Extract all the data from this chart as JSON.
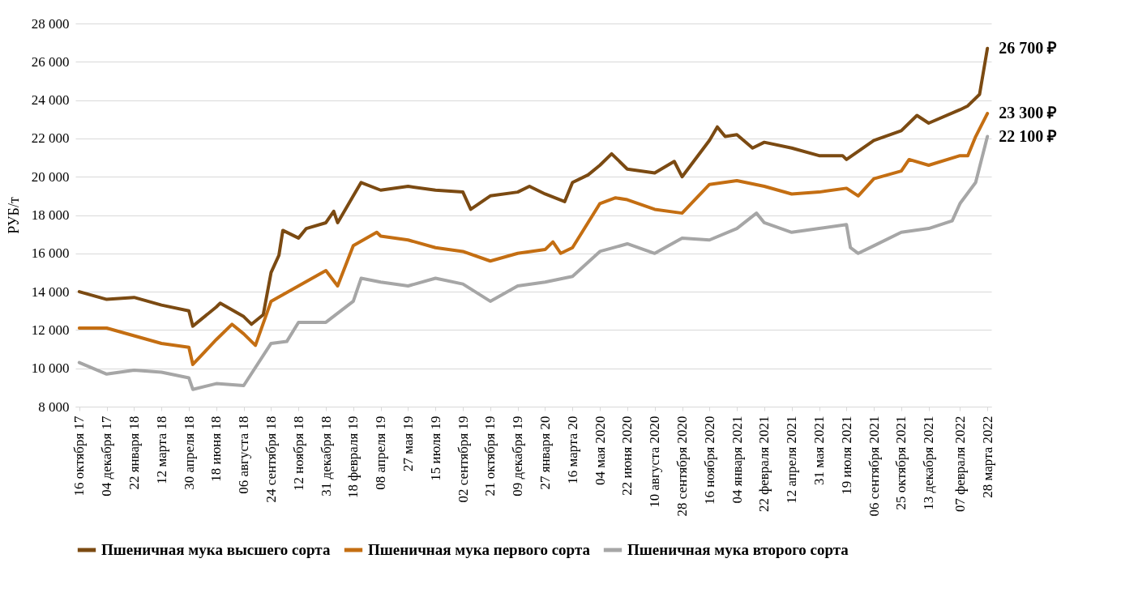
{
  "chart_data": {
    "type": "line",
    "ylabel": "РУБ/т",
    "xlim": [
      "2017-10-09",
      "2022-04-04"
    ],
    "xticks": [
      {
        "value": "2017-10-16",
        "label": "16 октября 17"
      },
      {
        "value": "2017-12-04",
        "label": "04 декабря 17"
      },
      {
        "value": "2018-01-22",
        "label": "22 января 18"
      },
      {
        "value": "2018-03-12",
        "label": "12 марта 18"
      },
      {
        "value": "2018-04-30",
        "label": "30 апреля 18"
      },
      {
        "value": "2018-06-18",
        "label": "18 июня 18"
      },
      {
        "value": "2018-08-06",
        "label": "06 августа 18"
      },
      {
        "value": "2018-09-24",
        "label": "24 сентября 18"
      },
      {
        "value": "2018-11-12",
        "label": "12 ноября 18"
      },
      {
        "value": "2018-12-31",
        "label": "31 декабря 18"
      },
      {
        "value": "2019-02-18",
        "label": "18 февраля 19"
      },
      {
        "value": "2019-04-08",
        "label": "08 апреля 19"
      },
      {
        "value": "2019-05-27",
        "label": "27 мая 19"
      },
      {
        "value": "2019-07-15",
        "label": "15 июля 19"
      },
      {
        "value": "2019-09-02",
        "label": "02 сентября 19"
      },
      {
        "value": "2019-10-21",
        "label": "21 октября 19"
      },
      {
        "value": "2019-12-09",
        "label": "09 декабря 19"
      },
      {
        "value": "2020-01-27",
        "label": "27 января 20"
      },
      {
        "value": "2020-03-16",
        "label": "16 марта 20"
      },
      {
        "value": "2020-05-04",
        "label": "04 мая 2020"
      },
      {
        "value": "2020-06-22",
        "label": "22 июня 2020"
      },
      {
        "value": "2020-08-10",
        "label": "10 августа 2020"
      },
      {
        "value": "2020-09-28",
        "label": "28 сентября 2020"
      },
      {
        "value": "2020-11-16",
        "label": "16 ноября 2020"
      },
      {
        "value": "2021-01-04",
        "label": "04 января 2021"
      },
      {
        "value": "2021-02-22",
        "label": "22 февраля 2021"
      },
      {
        "value": "2021-04-12",
        "label": "12 апреля 2021"
      },
      {
        "value": "2021-05-31",
        "label": "31 мая 2021"
      },
      {
        "value": "2021-07-19",
        "label": "19 июля 2021"
      },
      {
        "value": "2021-09-06",
        "label": "06 сентября 2021"
      },
      {
        "value": "2021-10-25",
        "label": "25 октября 2021"
      },
      {
        "value": "2021-12-13",
        "label": "13 декабря 2021"
      },
      {
        "value": "2022-02-07",
        "label": "07 февраля 2022"
      },
      {
        "value": "2022-03-28",
        "label": "28 марта 2022"
      }
    ],
    "ylim": [
      8000,
      28000
    ],
    "yticks": [
      {
        "value": 8000,
        "label": "8 000"
      },
      {
        "value": 10000,
        "label": "10 000"
      },
      {
        "value": 12000,
        "label": "12 000"
      },
      {
        "value": 14000,
        "label": "14 000"
      },
      {
        "value": 16000,
        "label": "16 000"
      },
      {
        "value": 18000,
        "label": "18 000"
      },
      {
        "value": 20000,
        "label": "20 000"
      },
      {
        "value": 22000,
        "label": "22 000"
      },
      {
        "value": 24000,
        "label": "24 000"
      },
      {
        "value": 26000,
        "label": "26 000"
      },
      {
        "value": 28000,
        "label": "28 000"
      }
    ],
    "grid": "y",
    "legend": "bottom",
    "annotations": [
      {
        "text": "26 700 ₽",
        "x": "2022-03-28",
        "y": 26700
      },
      {
        "text": "23 300 ₽",
        "x": "2022-03-28",
        "y": 23300
      },
      {
        "text": "22 100 ₽",
        "x": "2022-03-28",
        "y": 22100
      }
    ],
    "series": [
      {
        "name": "Пшеничная мука высшего сорта",
        "color": "#7b4a12",
        "x": [
          "2017-10-16",
          "2017-12-04",
          "2018-01-22",
          "2018-03-12",
          "2018-04-30",
          "2018-05-07",
          "2018-06-18",
          "2018-06-25",
          "2018-08-06",
          "2018-08-20",
          "2018-09-10",
          "2018-09-24",
          "2018-10-08",
          "2018-10-15",
          "2018-11-12",
          "2018-11-26",
          "2018-12-31",
          "2019-01-14",
          "2019-01-21",
          "2019-02-18",
          "2019-03-04",
          "2019-04-08",
          "2019-05-27",
          "2019-07-15",
          "2019-09-02",
          "2019-09-16",
          "2019-10-21",
          "2019-12-09",
          "2019-12-30",
          "2020-01-27",
          "2020-03-02",
          "2020-03-16",
          "2020-04-13",
          "2020-05-04",
          "2020-05-25",
          "2020-06-22",
          "2020-08-10",
          "2020-09-14",
          "2020-09-28",
          "2020-11-16",
          "2020-11-30",
          "2020-12-14",
          "2021-01-04",
          "2021-02-01",
          "2021-02-22",
          "2021-04-12",
          "2021-05-31",
          "2021-07-12",
          "2021-07-19",
          "2021-09-06",
          "2021-10-25",
          "2021-11-22",
          "2021-12-13",
          "2022-02-07",
          "2022-02-21",
          "2022-03-14",
          "2022-03-28"
        ],
        "values": [
          14000,
          13600,
          13700,
          13300,
          13000,
          12200,
          13200,
          13400,
          12700,
          12300,
          12800,
          15000,
          15900,
          17200,
          16800,
          17300,
          17600,
          18200,
          17600,
          19000,
          19700,
          19300,
          19500,
          19300,
          19200,
          18300,
          19000,
          19200,
          19500,
          19100,
          18700,
          19700,
          20100,
          20600,
          21200,
          20400,
          20200,
          20800,
          20000,
          21900,
          22600,
          22100,
          22200,
          21500,
          21800,
          21500,
          21100,
          21100,
          20900,
          21900,
          22400,
          23200,
          22800,
          23500,
          23700,
          24300,
          26700
        ]
      },
      {
        "name": "Пшеничная мука первого сорта",
        "color": "#c46e12",
        "x": [
          "2017-10-16",
          "2017-12-04",
          "2018-01-22",
          "2018-03-12",
          "2018-04-30",
          "2018-05-07",
          "2018-06-18",
          "2018-07-16",
          "2018-08-06",
          "2018-08-27",
          "2018-09-24",
          "2018-11-12",
          "2018-12-31",
          "2019-01-21",
          "2019-02-18",
          "2019-04-01",
          "2019-04-08",
          "2019-05-27",
          "2019-07-15",
          "2019-09-02",
          "2019-10-21",
          "2019-12-09",
          "2020-01-27",
          "2020-02-10",
          "2020-02-24",
          "2020-03-16",
          "2020-05-04",
          "2020-06-01",
          "2020-06-22",
          "2020-08-10",
          "2020-09-28",
          "2020-11-16",
          "2021-01-04",
          "2021-02-22",
          "2021-04-12",
          "2021-05-31",
          "2021-07-19",
          "2021-08-09",
          "2021-09-06",
          "2021-10-25",
          "2021-11-08",
          "2021-12-13",
          "2022-02-07",
          "2022-02-21",
          "2022-03-07",
          "2022-03-28"
        ],
        "values": [
          12100,
          12100,
          11700,
          11300,
          11100,
          10200,
          11500,
          12300,
          11800,
          11200,
          13500,
          14300,
          15100,
          14300,
          16400,
          17100,
          16900,
          16700,
          16300,
          16100,
          15600,
          16000,
          16200,
          16600,
          16000,
          16300,
          18600,
          18900,
          18800,
          18300,
          18100,
          19600,
          19800,
          19500,
          19100,
          19200,
          19400,
          19000,
          19900,
          20300,
          20900,
          20600,
          21100,
          21100,
          22100,
          23300
        ]
      },
      {
        "name": "Пшеничная мука второго сорта",
        "color": "#a6a6a6",
        "x": [
          "2017-10-16",
          "2017-12-04",
          "2018-01-22",
          "2018-03-12",
          "2018-04-30",
          "2018-05-07",
          "2018-06-18",
          "2018-08-06",
          "2018-09-24",
          "2018-10-22",
          "2018-11-12",
          "2018-12-31",
          "2019-02-18",
          "2019-03-04",
          "2019-04-08",
          "2019-05-27",
          "2019-07-15",
          "2019-09-02",
          "2019-10-21",
          "2019-12-09",
          "2020-01-27",
          "2020-03-16",
          "2020-05-04",
          "2020-06-22",
          "2020-08-10",
          "2020-09-28",
          "2020-11-16",
          "2021-01-04",
          "2021-02-08",
          "2021-02-22",
          "2021-04-12",
          "2021-05-31",
          "2021-07-19",
          "2021-07-26",
          "2021-08-09",
          "2021-09-06",
          "2021-10-25",
          "2021-12-13",
          "2022-01-24",
          "2022-02-07",
          "2022-03-07",
          "2022-03-28"
        ],
        "values": [
          10300,
          9700,
          9900,
          9800,
          9500,
          8900,
          9200,
          9100,
          11300,
          11400,
          12400,
          12400,
          13500,
          14700,
          14500,
          14300,
          14700,
          14400,
          13500,
          14300,
          14500,
          14800,
          16100,
          16500,
          16000,
          16800,
          16700,
          17300,
          18100,
          17600,
          17100,
          17300,
          17500,
          16300,
          16000,
          16400,
          17100,
          17300,
          17700,
          18600,
          19700,
          22100
        ]
      }
    ]
  }
}
